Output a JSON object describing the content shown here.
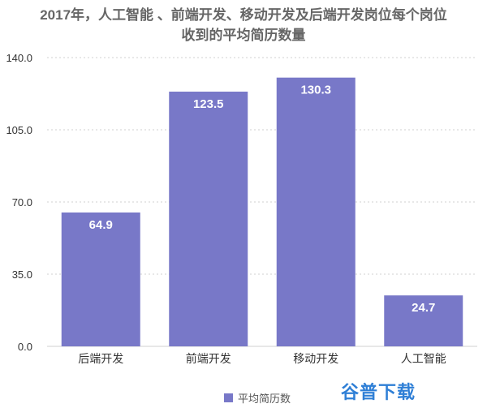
{
  "chart_data": {
    "type": "bar",
    "title_lines": [
      "2017年，人工智能 、前端开发、移动开发及后端开发岗位每个岗位",
      "收到的平均简历数量"
    ],
    "categories": [
      "后端开发",
      "前端开发",
      "移动开发",
      "人工智能"
    ],
    "series": [
      {
        "name": "平均简历数",
        "values": [
          64.9,
          123.5,
          130.3,
          24.7
        ],
        "labels": [
          "64.9",
          "123.5",
          "130.3",
          "24.7"
        ]
      }
    ],
    "ylim": [
      0,
      140
    ],
    "yticks": [
      "0.0",
      "35.0",
      "70.0",
      "105.0",
      "140.0"
    ],
    "ytick_values": [
      0,
      35,
      70,
      105,
      140
    ],
    "grid": true,
    "legend_position": "bottom",
    "colors": {
      "bar": "#7878c8",
      "grid": "#d0d0d0",
      "label": "#ffffff",
      "axis_text": "#333333"
    }
  },
  "watermark": {
    "text": "谷普下载",
    "color": "#2f7fd6"
  }
}
